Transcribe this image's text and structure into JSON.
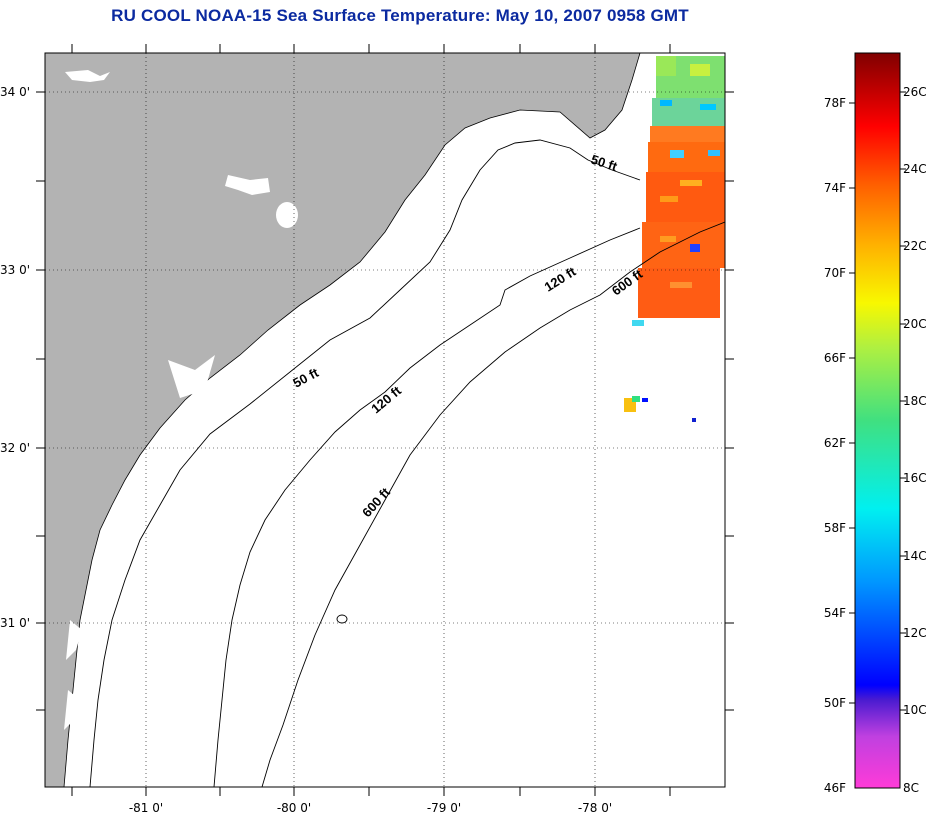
{
  "title": "RU COOL  NOAA-15  Sea Surface Temperature:  May 10, 2007 0958 GMT",
  "longitude_labels": [
    "-81 0'",
    "-80 0'",
    "-79 0'",
    "-78 0'"
  ],
  "latitude_labels": [
    "34 0'",
    "33 0'",
    "32 0'",
    "31 0'"
  ],
  "contour_labels": {
    "c50a": "50 ft",
    "c50b": "50 ft",
    "c120a": "120 ft",
    "c120b": "120 ft",
    "c600a": "600 ft",
    "c600b": "600 ft"
  },
  "colorbar": {
    "fahrenheit": [
      "78F",
      "74F",
      "70F",
      "66F",
      "62F",
      "58F",
      "54F",
      "50F",
      "46F"
    ],
    "celsius": [
      "26C",
      "24C",
      "22C",
      "20C",
      "18C",
      "16C",
      "14C",
      "12C",
      "10C",
      "8C"
    ]
  },
  "colors": {
    "title": "#0b2aa0",
    "land": "#b3b3b3",
    "ocean": "#ffffff"
  }
}
